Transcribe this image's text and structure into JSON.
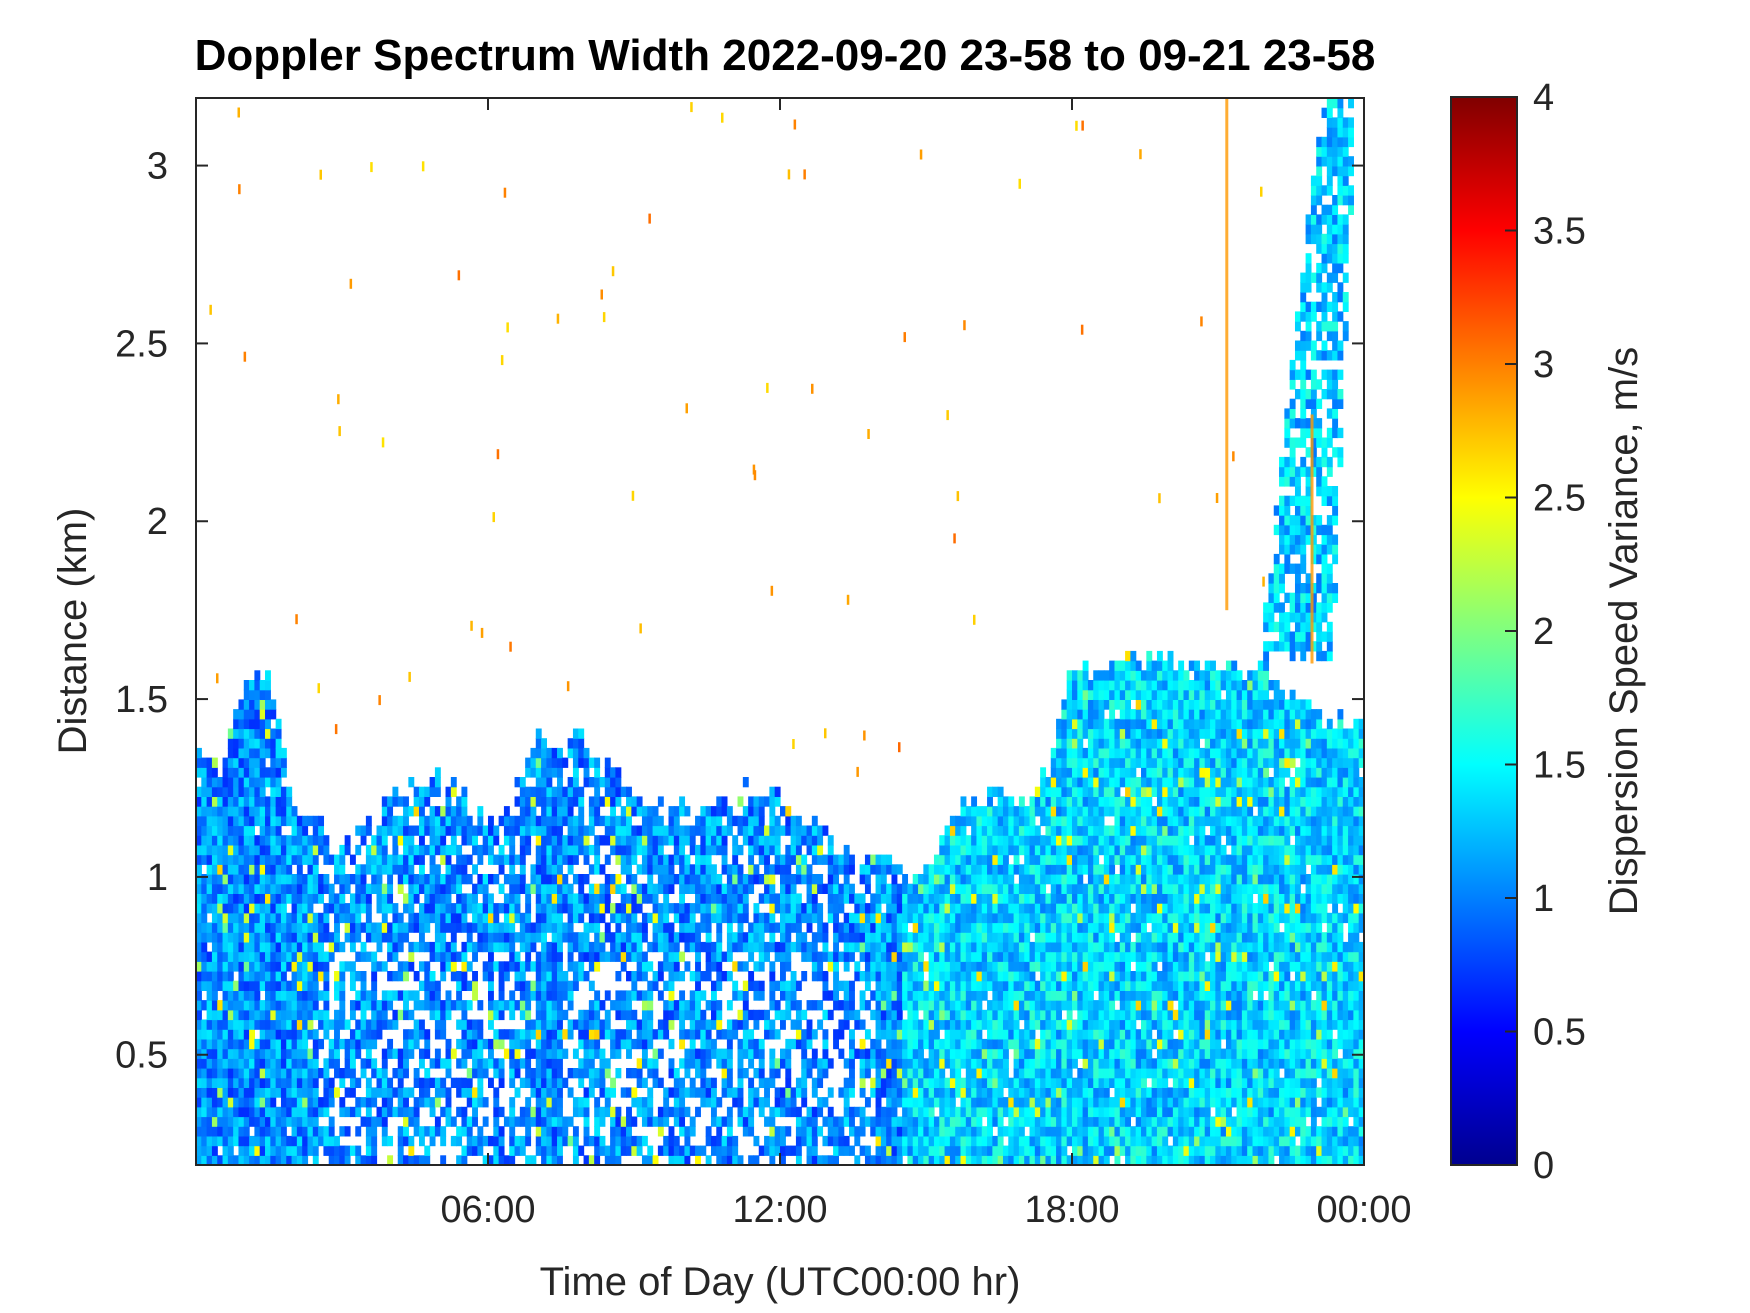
{
  "chart_data": {
    "type": "heatmap",
    "title": "Doppler Spectrum Width 2022-09-20 23-58 to 09-21 23-58",
    "xlabel": "Time of Day (UTC00:00 hr)",
    "ylabel": "Distance (km)",
    "colorbar_label": "Dispersion Speed Variance, m/s",
    "colormap": "jet",
    "x_unit": "hours of day",
    "xlim": [
      0,
      24
    ],
    "ylim": [
      0.19,
      3.19
    ],
    "clim": [
      0,
      4
    ],
    "x_ticks": [
      6,
      12,
      18,
      24
    ],
    "x_tick_labels": [
      "06:00",
      "12:00",
      "18:00",
      "00:00"
    ],
    "y_ticks": [
      0.5,
      1,
      1.5,
      2,
      2.5,
      3
    ],
    "y_tick_labels": [
      "0.5",
      "1",
      "1.5",
      "2",
      "2.5",
      "3"
    ],
    "colorbar_ticks": [
      0,
      0.5,
      1,
      1.5,
      2,
      2.5,
      3,
      3.5,
      4
    ],
    "colorbar_tick_labels": [
      "0",
      "0.5",
      "1",
      "1.5",
      "2",
      "2.5",
      "3",
      "3.5",
      "4"
    ],
    "grid": false,
    "data_top_km_by_hour": {
      "x": [
        0,
        0.5,
        1,
        1.5,
        2,
        2.5,
        3,
        3.5,
        4,
        4.5,
        5,
        5.5,
        6,
        6.5,
        7,
        7.5,
        8,
        8.5,
        9,
        9.5,
        10,
        10.5,
        11,
        11.5,
        12,
        12.5,
        13,
        13.5,
        14,
        14.5,
        15,
        15.5,
        16,
        16.5,
        17,
        17.5,
        18,
        18.5,
        19,
        19.5,
        20,
        20.5,
        21,
        21.5,
        22,
        22.5,
        23,
        23.5,
        24
      ],
      "y": [
        1.35,
        1.3,
        1.55,
        1.6,
        1.2,
        1.15,
        1.1,
        1.15,
        1.25,
        1.25,
        1.3,
        1.25,
        1.15,
        1.2,
        1.42,
        1.35,
        1.42,
        1.3,
        1.22,
        1.2,
        1.2,
        1.22,
        1.2,
        1.28,
        1.22,
        1.15,
        1.12,
        1.05,
        1.05,
        1.02,
        1.0,
        1.18,
        1.22,
        1.25,
        1.2,
        1.3,
        1.6,
        1.58,
        1.6,
        1.6,
        1.62,
        1.6,
        1.6,
        1.58,
        1.6,
        1.5,
        1.45,
        1.45,
        1.45
      ]
    },
    "upper_cloud_layer": {
      "x_range": [
        21.8,
        24
      ],
      "y_range": [
        1.6,
        3.19
      ],
      "typical_value": 1.3
    },
    "typical_value_range": [
      0.8,
      1.6
    ]
  }
}
